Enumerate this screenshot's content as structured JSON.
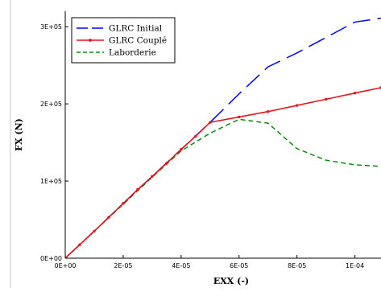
{
  "chart_data": {
    "type": "line",
    "xlabel": "EXX (-)",
    "ylabel": "FX (N)",
    "xlim": [
      0,
      0.000109
    ],
    "ylim": [
      0,
      320000
    ],
    "x_ticks": [
      0,
      2e-05,
      4e-05,
      6e-05,
      8e-05,
      0.0001
    ],
    "x_tick_labels": [
      "0E+00",
      "2E-05",
      "4E-05",
      "6E-05",
      "8E-05",
      "1E-04"
    ],
    "y_ticks": [
      0,
      100000,
      200000,
      300000
    ],
    "y_tick_labels": [
      "0E+00",
      "1E+05",
      "2E+05",
      "3E+05"
    ],
    "grid": false,
    "legend_position": "top-left",
    "series": [
      {
        "name": "GLRC Initial",
        "color": "#0000ff",
        "style": "long-dash",
        "marker": "none",
        "x": [
          0,
          1e-05,
          2e-05,
          3e-05,
          4e-05,
          5e-05,
          6e-05,
          7e-05,
          8e-05,
          9e-05,
          0.0001,
          0.000109
        ],
        "y": [
          0,
          35000,
          71000,
          106000,
          141000,
          176000,
          213000,
          248000,
          266000,
          286000,
          306000,
          311000
        ]
      },
      {
        "name": "GLRC Couplé",
        "color": "#e8141b",
        "style": "solid",
        "marker": "dot",
        "x": [
          0,
          5e-06,
          1e-05,
          1.5e-05,
          2e-05,
          2.5e-05,
          3e-05,
          3.5e-05,
          4e-05,
          4.5e-05,
          5e-05,
          6e-05,
          7e-05,
          8e-05,
          9e-05,
          0.0001,
          0.000109
        ],
        "y": [
          0,
          17500,
          35000,
          53000,
          71000,
          89000,
          106000,
          123000,
          141000,
          158000,
          176000,
          183000,
          190000,
          198000,
          206000,
          214000,
          221000
        ]
      },
      {
        "name": "Laborderie",
        "color": "#0a8a0a",
        "style": "dash",
        "marker": "none",
        "x": [
          0,
          1e-05,
          2e-05,
          3e-05,
          4e-05,
          5e-05,
          6e-05,
          7e-05,
          8e-05,
          9e-05,
          0.0001,
          0.000109
        ],
        "y": [
          0,
          35000,
          70000,
          105000,
          139000,
          162000,
          180000,
          175000,
          142000,
          127000,
          121000,
          119000
        ]
      }
    ]
  }
}
